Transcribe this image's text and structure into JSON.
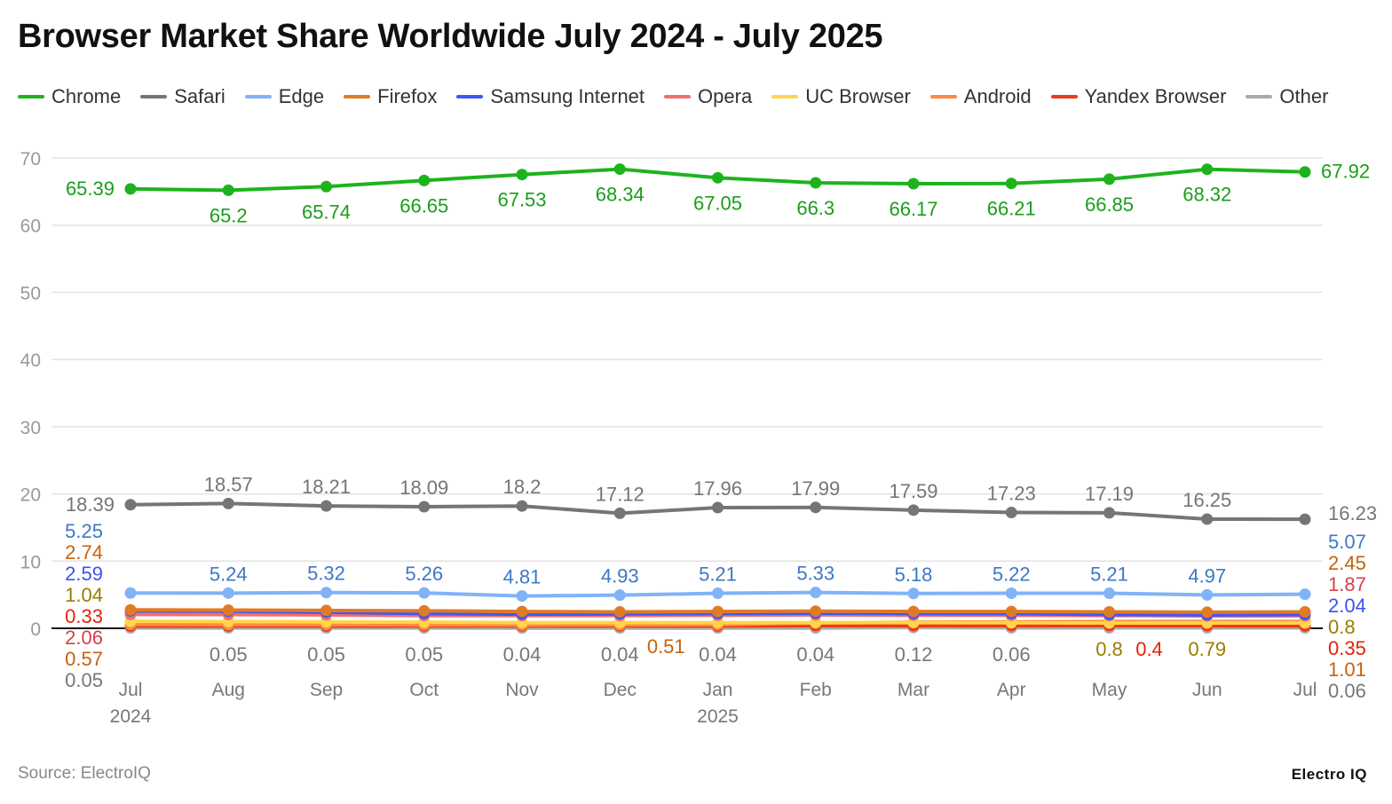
{
  "title": "Browser Market Share Worldwide July 2024 - July 2025",
  "source": "Source: ElectroIQ",
  "logo": "Electro IQ",
  "chart_data": {
    "type": "line",
    "title": "Browser Market Share Worldwide July 2024 - July 2025",
    "xlabel": "",
    "ylabel": "",
    "ylim": [
      0,
      70
    ],
    "yticks": [
      "0",
      "10",
      "20",
      "30",
      "40",
      "50",
      "60",
      "70"
    ],
    "grid": true,
    "legend_position": "top",
    "categories": [
      "Jul",
      "Aug",
      "Sep",
      "Oct",
      "Nov",
      "Dec",
      "Jan",
      "Feb",
      "Mar",
      "Apr",
      "May",
      "Jun",
      "Jul"
    ],
    "category_sublabels": [
      "2024",
      "",
      "",
      "",
      "",
      "",
      "2025",
      "",
      "",
      "",
      "",
      "",
      ""
    ],
    "series": [
      {
        "name": "Chrome",
        "color": "#1db31d",
        "label_color": "#1a9e1a",
        "values": [
          65.39,
          65.2,
          65.74,
          66.65,
          67.53,
          68.34,
          67.05,
          66.3,
          66.17,
          66.21,
          66.85,
          68.32,
          67.92
        ],
        "labels": [
          "65.39",
          "65.2",
          "65.74",
          "66.65",
          "67.53",
          "68.34",
          "67.05",
          "66.3",
          "66.17",
          "66.21",
          "66.85",
          "68.32",
          "67.92"
        ]
      },
      {
        "name": "Safari",
        "color": "#757575",
        "label_color": "#757575",
        "values": [
          18.39,
          18.57,
          18.21,
          18.09,
          18.2,
          17.12,
          17.96,
          17.99,
          17.59,
          17.23,
          17.19,
          16.25,
          16.23
        ],
        "labels": [
          "18.39",
          "18.57",
          "18.21",
          "18.09",
          "18.2",
          "17.12",
          "17.96",
          "17.99",
          "17.59",
          "17.23",
          "17.19",
          "16.25",
          "16.23"
        ]
      },
      {
        "name": "Edge",
        "color": "#80b3f7",
        "label_color": "#3d78c6",
        "values": [
          5.25,
          5.24,
          5.32,
          5.26,
          4.81,
          4.93,
          5.21,
          5.33,
          5.18,
          5.22,
          5.21,
          4.97,
          5.07
        ],
        "labels": [
          "5.25",
          "5.24",
          "5.32",
          "5.26",
          "4.81",
          "4.93",
          "5.21",
          "5.33",
          "5.18",
          "5.22",
          "5.21",
          "4.97",
          "5.07"
        ]
      },
      {
        "name": "Firefox",
        "color": "#e07b24",
        "label_color": "#c5620c",
        "values": [
          2.74,
          2.7,
          2.65,
          2.6,
          2.5,
          2.45,
          2.5,
          2.55,
          2.5,
          2.5,
          2.45,
          2.4,
          2.45
        ],
        "labels": [
          "2.74",
          null,
          null,
          null,
          null,
          null,
          null,
          null,
          null,
          null,
          null,
          null,
          "2.45"
        ]
      },
      {
        "name": "Samsung Internet",
        "color": "#3d57fb",
        "label_color": "#3d50f0",
        "values": [
          2.59,
          2.55,
          2.4,
          2.2,
          2.1,
          2.15,
          2.2,
          2.25,
          2.2,
          2.2,
          2.05,
          2.0,
          2.04
        ],
        "labels": [
          "2.59",
          null,
          null,
          null,
          null,
          null,
          null,
          null,
          null,
          null,
          null,
          null,
          "2.04"
        ]
      },
      {
        "name": "Opera",
        "color": "#f46e6e",
        "label_color": "#d4404c",
        "values": [
          2.06,
          2.05,
          2.0,
          1.9,
          1.9,
          1.9,
          1.95,
          2.0,
          1.95,
          1.95,
          1.9,
          1.85,
          1.87
        ],
        "labels": [
          "2.06",
          null,
          null,
          null,
          null,
          null,
          null,
          null,
          null,
          null,
          null,
          null,
          "1.87"
        ]
      },
      {
        "name": "UC Browser",
        "color": "#ffd54a",
        "label_color": "#9a7d00",
        "values": [
          1.04,
          1.0,
          0.95,
          0.9,
          0.85,
          0.85,
          0.85,
          0.85,
          0.85,
          0.82,
          0.8,
          0.79,
          0.8
        ],
        "labels": [
          "1.04",
          null,
          null,
          null,
          null,
          null,
          null,
          null,
          null,
          null,
          "0.8",
          "0.79",
          "0.8"
        ]
      },
      {
        "name": "Android",
        "color": "#ff8a3d",
        "label_color": "#c5620c",
        "values": [
          0.57,
          0.55,
          0.55,
          0.52,
          0.5,
          0.51,
          0.55,
          0.8,
          0.9,
          0.95,
          1.0,
          1.0,
          1.01
        ],
        "labels": [
          "0.57",
          null,
          null,
          null,
          null,
          "0.51",
          null,
          null,
          null,
          null,
          null,
          null,
          "1.01"
        ]
      },
      {
        "name": "Yandex Browser",
        "color": "#f03a17",
        "label_color": "#e8200a",
        "values": [
          0.33,
          0.33,
          0.33,
          0.35,
          0.35,
          0.35,
          0.35,
          0.4,
          0.4,
          0.4,
          0.4,
          0.38,
          0.35
        ],
        "labels": [
          "0.33",
          null,
          null,
          null,
          null,
          null,
          null,
          null,
          null,
          null,
          "0.4",
          null,
          "0.35"
        ]
      },
      {
        "name": "Other",
        "color": "#aaaaaa",
        "label_color": "#777777",
        "values": [
          0.05,
          0.05,
          0.05,
          0.05,
          0.04,
          0.04,
          0.04,
          0.04,
          0.12,
          0.06,
          0.06,
          0.06,
          0.06
        ],
        "labels": [
          "0.05",
          "0.05",
          "0.05",
          "0.05",
          "0.04",
          "0.04",
          "0.04",
          "0.04",
          "0.12",
          "0.06",
          null,
          null,
          "0.06"
        ]
      }
    ]
  }
}
